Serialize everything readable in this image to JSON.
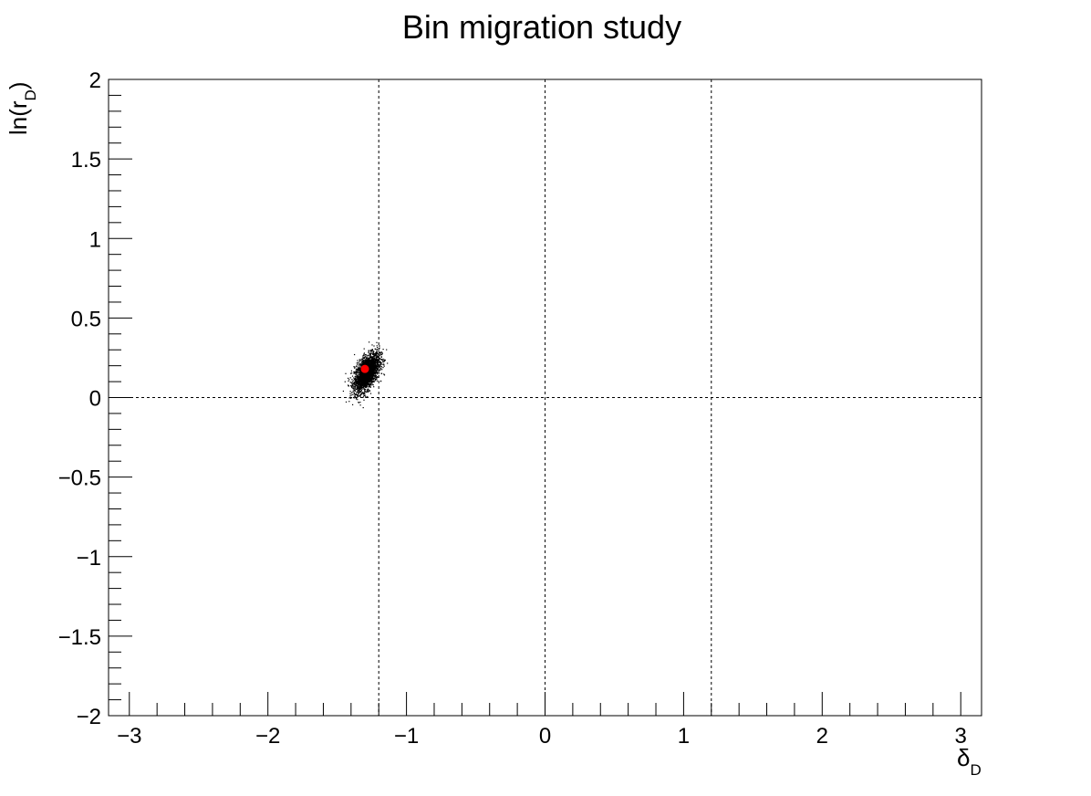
{
  "chart_data": {
    "type": "scatter",
    "title": "Bin migration study",
    "xlabel": {
      "main": "δ",
      "sub": "D"
    },
    "ylabel": {
      "pre": "ln(r",
      "sub": "D",
      "post": ")"
    },
    "xlim": [
      -3.15,
      3.15
    ],
    "ylim": [
      -2,
      2
    ],
    "x_ticks": [
      {
        "value": -3,
        "label": "−3"
      },
      {
        "value": -2,
        "label": "−2"
      },
      {
        "value": -1,
        "label": "−1"
      },
      {
        "value": 0,
        "label": "0"
      },
      {
        "value": 1,
        "label": "1"
      },
      {
        "value": 2,
        "label": "2"
      },
      {
        "value": 3,
        "label": "3"
      }
    ],
    "y_ticks": [
      {
        "value": 2,
        "label": "2"
      },
      {
        "value": 1.5,
        "label": "1.5"
      },
      {
        "value": 1,
        "label": "1"
      },
      {
        "value": 0.5,
        "label": "0.5"
      },
      {
        "value": 0,
        "label": "0"
      },
      {
        "value": -0.5,
        "label": "−0.5"
      },
      {
        "value": -1,
        "label": "−1"
      },
      {
        "value": -1.5,
        "label": "−1.5"
      },
      {
        "value": -2,
        "label": "−2"
      }
    ],
    "x_minor_step": 0.2,
    "y_minor_step": 0.1,
    "reference_lines": {
      "vertical": [
        -1.2,
        0,
        1.2
      ],
      "horizontal": [
        0
      ]
    },
    "cluster": {
      "center": [
        -1.29,
        0.16
      ],
      "sigma": [
        0.045,
        0.06
      ],
      "correlation": 0.55,
      "color": "#000000"
    },
    "marker": {
      "x": -1.3,
      "y": 0.18,
      "color": "#ff0000"
    }
  }
}
